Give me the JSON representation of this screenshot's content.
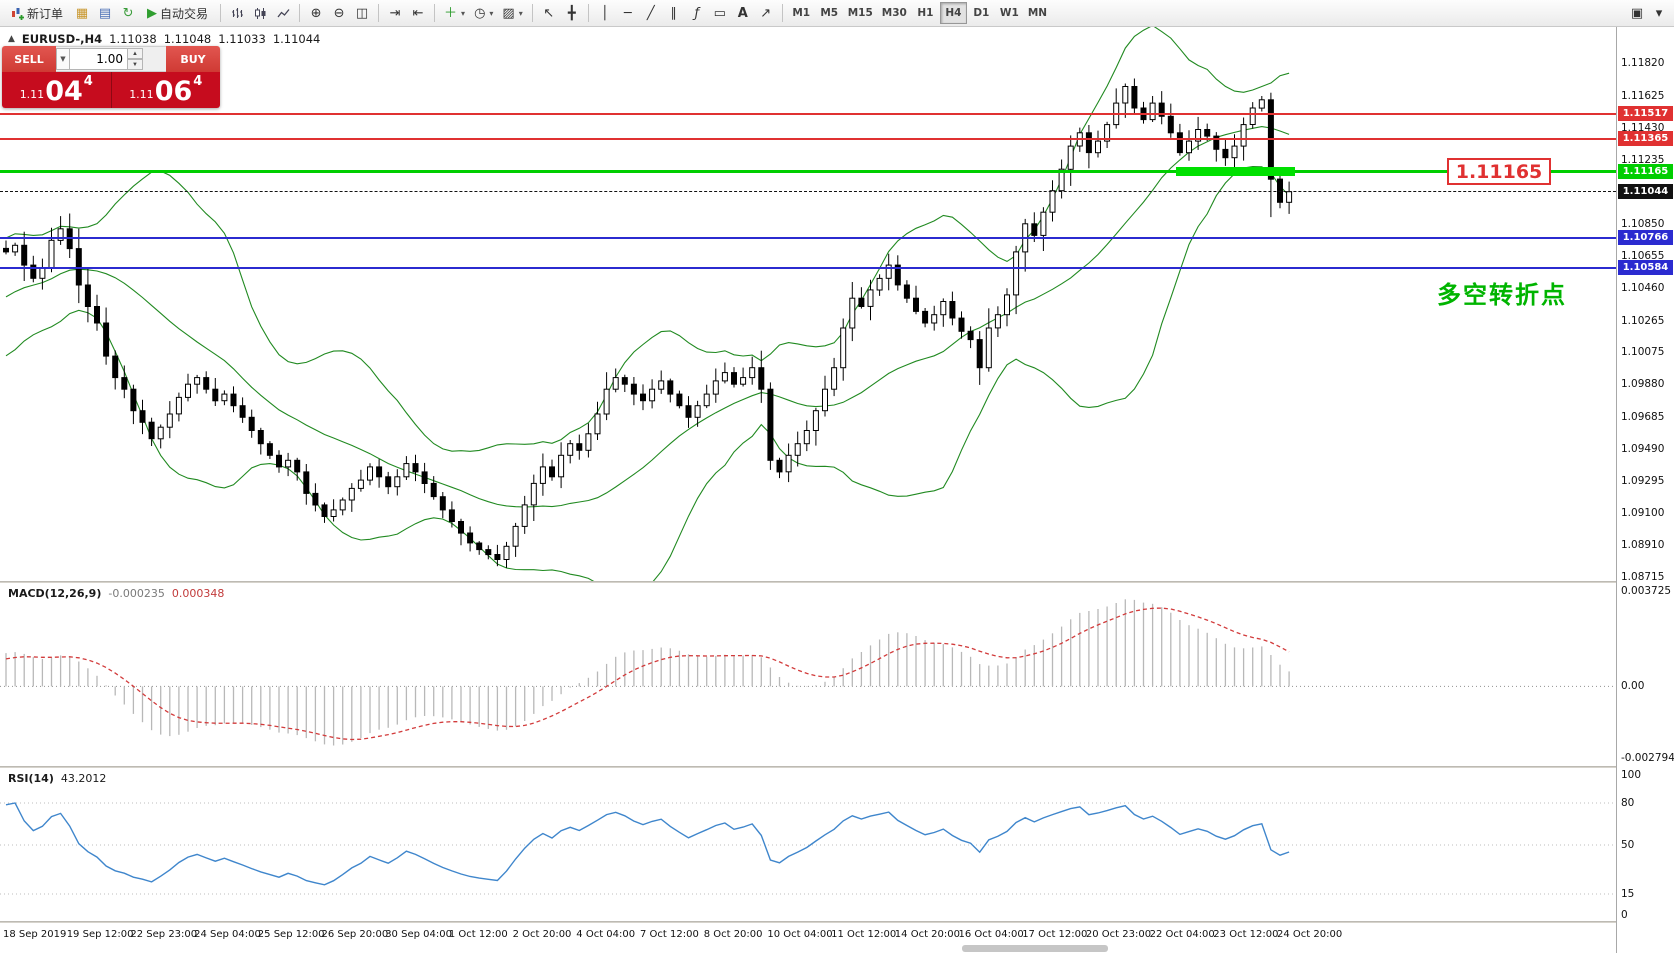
{
  "toolbar": {
    "new_order_label": "新订单",
    "autotrading_label": "自动交易",
    "timeframes": [
      "M1",
      "M5",
      "M15",
      "M30",
      "H1",
      "H4",
      "D1",
      "W1",
      "MN"
    ],
    "active_timeframe": "H4"
  },
  "chart_header": {
    "collapse_icon": "▲",
    "symbol": "EURUSD-,H4",
    "o": "1.11038",
    "h": "1.11048",
    "l": "1.11033",
    "c": "1.11044"
  },
  "trade": {
    "sell_label": "SELL",
    "buy_label": "BUY",
    "volume": "1.00",
    "sell_small": "1.11",
    "sell_big": "04",
    "sell_sup": "4",
    "buy_small": "1.11",
    "buy_big": "06",
    "buy_sup": "4"
  },
  "macd": {
    "title": "MACD(12,26,9)",
    "main_value": "-0.000235",
    "signal_value": "0.000348",
    "axis_max": "0.003725",
    "axis_zero": "0.00",
    "axis_min": "-0.002794"
  },
  "rsi": {
    "title": "RSI(14)",
    "value": "43.2012",
    "axis": [
      "100",
      "80",
      "50",
      "15",
      "0"
    ],
    "levels": [
      80,
      50,
      15
    ]
  },
  "annotations": {
    "level_label": "1.11165",
    "note": "多空转折点",
    "note_color": "#00b400",
    "callout_color": "#e03131",
    "highlight_zone": {
      "price": 1.11165,
      "from_bar": 129,
      "to_bar": 142,
      "color": "#00e000"
    }
  },
  "chart_data": {
    "type": "candlestick",
    "symbol": "EURUSD-",
    "timeframe": "H4",
    "title": "EURUSD-,H4",
    "ohlc_display": [
      1.11038,
      1.11048,
      1.11033,
      1.11044
    ],
    "y_range": [
      1.0869,
      1.1204
    ],
    "y_tick_labels": [
      "1.11820",
      "1.11625",
      "1.11430",
      "1.11235",
      "1.10850",
      "1.10655",
      "1.10460",
      "1.10265",
      "1.10075",
      "1.09880",
      "1.09685",
      "1.09490",
      "1.09295",
      "1.09100",
      "1.08910",
      "1.08715"
    ],
    "x_tick_labels": [
      "18 Sep 2019",
      "19 Sep 12:00",
      "22 Sep 23:00",
      "24 Sep 04:00",
      "25 Sep 12:00",
      "26 Sep 20:00",
      "30 Sep 04:00",
      "1 Oct 12:00",
      "2 Oct 20:00",
      "4 Oct 04:00",
      "7 Oct 12:00",
      "8 Oct 20:00",
      "10 Oct 04:00",
      "11 Oct 12:00",
      "14 Oct 20:00",
      "16 Oct 04:00",
      "17 Oct 12:00",
      "20 Oct 23:00",
      "22 Oct 04:00",
      "23 Oct 12:00",
      "24 Oct 20:00"
    ],
    "bars_per_x_tick": 7,
    "closes": [
      1.1068,
      1.1072,
      1.106,
      1.1052,
      1.1058,
      1.1075,
      1.1082,
      1.107,
      1.1048,
      1.1035,
      1.1025,
      1.1005,
      1.0992,
      1.0985,
      1.0972,
      1.0965,
      1.0955,
      1.0962,
      1.097,
      1.098,
      1.0988,
      1.0992,
      1.0985,
      1.0978,
      1.0982,
      1.0975,
      1.0968,
      1.096,
      1.0952,
      1.0945,
      1.0938,
      1.0942,
      1.0935,
      1.0922,
      1.0915,
      1.0908,
      1.0912,
      1.0918,
      1.0925,
      1.093,
      1.0938,
      1.0932,
      1.0926,
      1.0932,
      1.094,
      1.0935,
      1.0928,
      1.092,
      1.0912,
      1.0905,
      1.0898,
      1.0892,
      1.0888,
      1.0885,
      1.0882,
      1.089,
      1.0902,
      1.0915,
      1.0928,
      1.0938,
      1.0932,
      1.0945,
      1.0952,
      1.0948,
      1.0958,
      1.097,
      1.0985,
      1.0992,
      1.0988,
      1.0982,
      1.0978,
      1.0985,
      1.099,
      1.0982,
      1.0975,
      1.0968,
      1.0975,
      1.0982,
      1.099,
      1.0995,
      1.0988,
      1.0992,
      1.0998,
      1.0985,
      1.0942,
      1.0935,
      1.0945,
      1.0952,
      1.096,
      1.0972,
      1.0985,
      1.0998,
      1.1022,
      1.104,
      1.1035,
      1.1045,
      1.1052,
      1.106,
      1.1048,
      1.104,
      1.1032,
      1.1025,
      1.103,
      1.1038,
      1.1028,
      1.102,
      1.1015,
      1.0998,
      1.1022,
      1.103,
      1.1042,
      1.1068,
      1.1085,
      1.1078,
      1.1092,
      1.1105,
      1.1118,
      1.1132,
      1.114,
      1.1128,
      1.1135,
      1.1145,
      1.1158,
      1.1168,
      1.1155,
      1.1148,
      1.1158,
      1.115,
      1.114,
      1.1128,
      1.1135,
      1.1142,
      1.1138,
      1.113,
      1.1125,
      1.1132,
      1.1145,
      1.1155,
      1.116,
      1.1112,
      1.1098,
      1.11044
    ],
    "overlays": {
      "bollinger": {
        "period": 20,
        "deviation": 2,
        "color": "#218a21"
      },
      "horizontal_lines": [
        {
          "price": 1.11517,
          "label": "1.11517",
          "color": "#e03131",
          "width": 2,
          "style": "solid"
        },
        {
          "price": 1.11365,
          "label": "1.11365",
          "color": "#e03131",
          "width": 2,
          "style": "solid"
        },
        {
          "price": 1.11165,
          "label": "1.11165",
          "color": "#00ce00",
          "width": 3,
          "style": "solid"
        },
        {
          "price": 1.11044,
          "label": "1.11044",
          "color": "#111111",
          "width": 1,
          "style": "dashed"
        },
        {
          "price": 1.10766,
          "label": "1.10766",
          "color": "#2b2bd0",
          "width": 2,
          "style": "solid"
        },
        {
          "price": 1.10584,
          "label": "1.10584",
          "color": "#2b2bd0",
          "width": 2,
          "style": "solid"
        }
      ]
    },
    "subcharts": [
      {
        "type": "macd-histogram",
        "label": "MACD(12,26,9)",
        "fast": 12,
        "slow": 26,
        "signal": 9,
        "current_values": [
          "-0.000235",
          "0.000348"
        ],
        "y_ticks": [
          "0.003725",
          "0.00",
          "-0.002794"
        ],
        "histogram_color": "#b8b8b8",
        "signal_color": "#d23b3b"
      },
      {
        "type": "rsi-line",
        "label": "RSI(14)",
        "period": 14,
        "current_value": "43.2012",
        "y_ticks": [
          "100",
          "80",
          "50",
          "15",
          "0"
        ],
        "levels": [
          80,
          50,
          15
        ],
        "line_color": "#3f86cc"
      }
    ]
  }
}
